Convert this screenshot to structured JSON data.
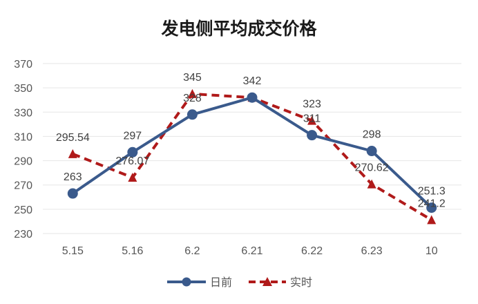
{
  "chart_data": {
    "type": "line",
    "title": "发电侧平均成交价格",
    "categories": [
      "5.15",
      "5.16",
      "6.2",
      "6.21",
      "6.22",
      "6.23",
      "10"
    ],
    "ylim": [
      230,
      370
    ],
    "yticks": [
      "230",
      "250",
      "270",
      "290",
      "310",
      "330",
      "350",
      "370"
    ],
    "grid": true,
    "legend": "bottom",
    "series": [
      {
        "name": "日前",
        "values": [
          263,
          297,
          328,
          342,
          311,
          298,
          251.3
        ],
        "labels": [
          "263",
          "297",
          "328",
          "342",
          "311",
          "298",
          "251.3"
        ],
        "color": "#3a5a8c",
        "style": "solid",
        "marker": "circle"
      },
      {
        "name": "实时",
        "values": [
          295.54,
          276.07,
          345,
          342,
          323,
          270.62,
          241.2
        ],
        "labels": [
          "295.54",
          "276.07",
          "345",
          "",
          "323",
          "270.62",
          "241.2"
        ],
        "color": "#b01a1a",
        "style": "dashed",
        "marker": "triangle"
      }
    ]
  }
}
